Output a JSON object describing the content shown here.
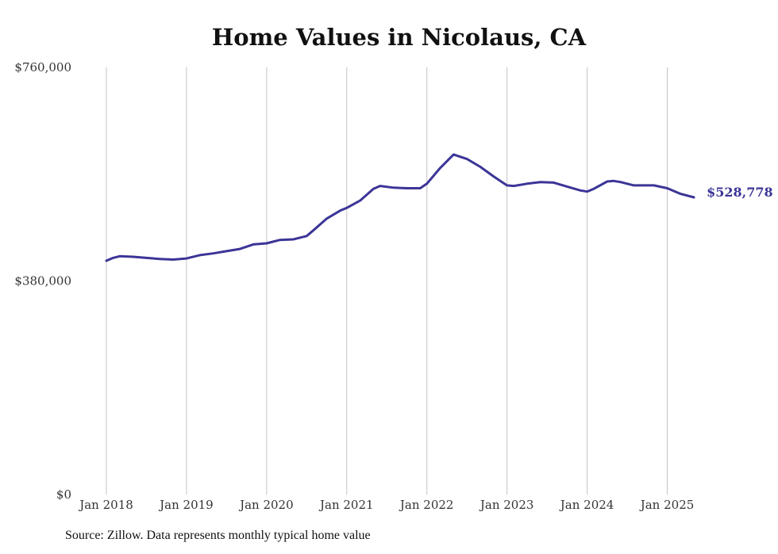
{
  "chart_data": {
    "type": "line",
    "title": "Home Values in Nicolaus, CA",
    "source": "Source: Zillow. Data represents monthly typical home value",
    "ylim": [
      0,
      760000
    ],
    "y_ticks": [
      {
        "value": 0,
        "label": "$0"
      },
      {
        "value": 380000,
        "label": "$380,000"
      },
      {
        "value": 760000,
        "label": "$760,000"
      }
    ],
    "x_ticks": [
      {
        "value": 2018.0,
        "label": "Jan 2018"
      },
      {
        "value": 2019.0,
        "label": "Jan 2019"
      },
      {
        "value": 2020.0,
        "label": "Jan 2020"
      },
      {
        "value": 2021.0,
        "label": "Jan 2021"
      },
      {
        "value": 2022.0,
        "label": "Jan 2022"
      },
      {
        "value": 2023.0,
        "label": "Jan 2023"
      },
      {
        "value": 2024.0,
        "label": "Jan 2024"
      },
      {
        "value": 2025.0,
        "label": "Jan 2025"
      }
    ],
    "grid": "vertical",
    "line_color": "#3b3597",
    "end_label": "$528,778",
    "series": [
      {
        "x": [
          "2018-01",
          "2018-02",
          "2018-03",
          "2018-05",
          "2018-07",
          "2018-09",
          "2018-11",
          "2019-01",
          "2019-03",
          "2019-05",
          "2019-07",
          "2019-09",
          "2019-11",
          "2020-01",
          "2020-03",
          "2020-05",
          "2020-07",
          "2020-08",
          "2020-10",
          "2020-12",
          "2021-01",
          "2021-03",
          "2021-05",
          "2021-06",
          "2021-08",
          "2021-10",
          "2021-12",
          "2022-01",
          "2022-03",
          "2022-05",
          "2022-06",
          "2022-07",
          "2022-09",
          "2022-11",
          "2023-01",
          "2023-02",
          "2023-04",
          "2023-06",
          "2023-08",
          "2023-10",
          "2023-12",
          "2024-01",
          "2024-02",
          "2024-04",
          "2024-05",
          "2024-06",
          "2024-08",
          "2024-10",
          "2024-11",
          "2025-01",
          "2025-03",
          "2025-05"
        ],
        "y": [
          416000,
          421000,
          424000,
          423000,
          421000,
          419000,
          418000,
          420000,
          426000,
          429000,
          433000,
          437000,
          445000,
          447000,
          453000,
          454000,
          460000,
          470000,
          491000,
          505000,
          510000,
          523000,
          544000,
          549000,
          546000,
          545000,
          545000,
          553000,
          581000,
          605000,
          601000,
          597000,
          583000,
          566000,
          550000,
          549000,
          553000,
          556000,
          555000,
          548000,
          541000,
          539000,
          544000,
          557000,
          558000,
          556000,
          550000,
          550000,
          550000,
          545000,
          535000,
          528778
        ]
      }
    ]
  }
}
